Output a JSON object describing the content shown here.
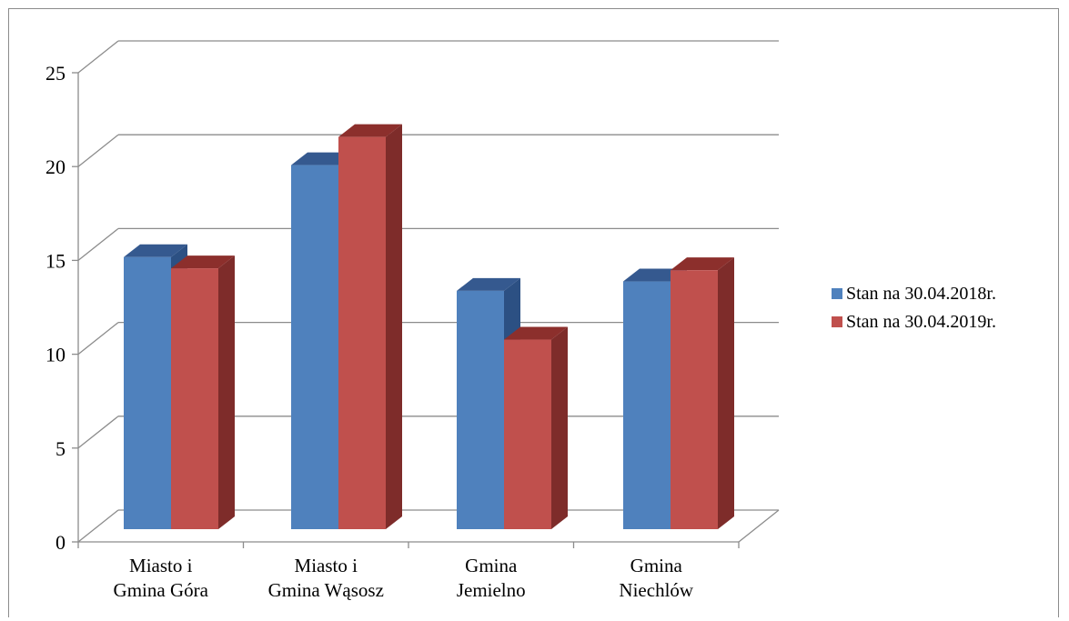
{
  "chart_data": {
    "type": "bar",
    "style": "3d-clustered-column",
    "categories": [
      [
        "Miasto i",
        "Gmina Góra"
      ],
      [
        "Miasto i",
        "Gmina Wąsosz"
      ],
      [
        "Gmina",
        "Jemielno"
      ],
      [
        "Gmina",
        "Niechlów"
      ]
    ],
    "series": [
      {
        "name": "Stan na 30.04.2018r.",
        "values": [
          14.5,
          19.4,
          12.7,
          13.2
        ],
        "color": "#4f81bd",
        "side_color": "#2c5083",
        "top_color": "#35598f"
      },
      {
        "name": "Stan na 30.04.2019r.",
        "values": [
          13.9,
          20.9,
          10.1,
          13.8
        ],
        "color": "#c0504d",
        "side_color": "#7e2c2a",
        "top_color": "#8c2f2c"
      }
    ],
    "yticks": [
      0,
      5,
      10,
      15,
      20,
      25
    ],
    "ylim": [
      0,
      25
    ],
    "grid": true,
    "legend_position": "right"
  }
}
